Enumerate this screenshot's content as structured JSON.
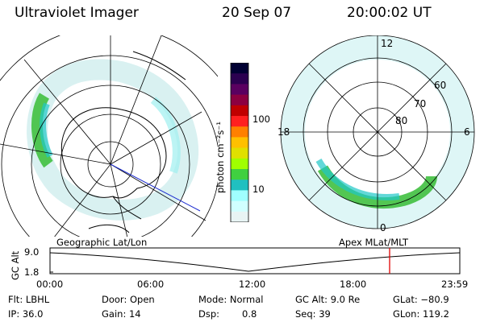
{
  "header": {
    "instrument": "Ultraviolet Imager",
    "date": "20 Sep 07",
    "time": "20:00:02 UT"
  },
  "colorbar": {
    "unit_label": "photon cm⁻²s⁻¹",
    "ticks": [
      "100",
      "10"
    ],
    "colors": [
      "#000033",
      "#2b0050",
      "#5a0060",
      "#8c0040",
      "#c00000",
      "#ff2020",
      "#ff8000",
      "#ffc000",
      "#e0e000",
      "#a0ff00",
      "#40d040",
      "#20c0c0",
      "#a0ffff",
      "#d0ffff",
      "#e8f4f4"
    ]
  },
  "left_map": {
    "label": "Geographic Lat/Lon"
  },
  "right_map": {
    "label": "Apex MLat/MLT",
    "mlt_labels": {
      "top": "12",
      "left": "18",
      "right": "6",
      "bottom": "0"
    },
    "lat_labels": [
      "60",
      "70",
      "80"
    ]
  },
  "timeline": {
    "ylabel": "GC Alt",
    "y_ticks": [
      "9.0",
      "1.8"
    ],
    "x_ticks": [
      "00:00",
      "06:00",
      "12:00",
      "18:00",
      "23:59"
    ],
    "marker_color": "#e00000"
  },
  "info": {
    "row1": {
      "flt": "Flt: LBHL",
      "door": "Door: Open",
      "mode": "Mode: Normal",
      "gcalt": "GC Alt: 9.0 Re",
      "glat": "GLat: −80.9"
    },
    "row2": {
      "ip": "IP: 36.0",
      "gain": "Gain: 14",
      "dsp_label": "Dsp:",
      "dsp_value": "0.8",
      "seq": "Seq: 39",
      "glon": "GLon: 119.2"
    }
  }
}
